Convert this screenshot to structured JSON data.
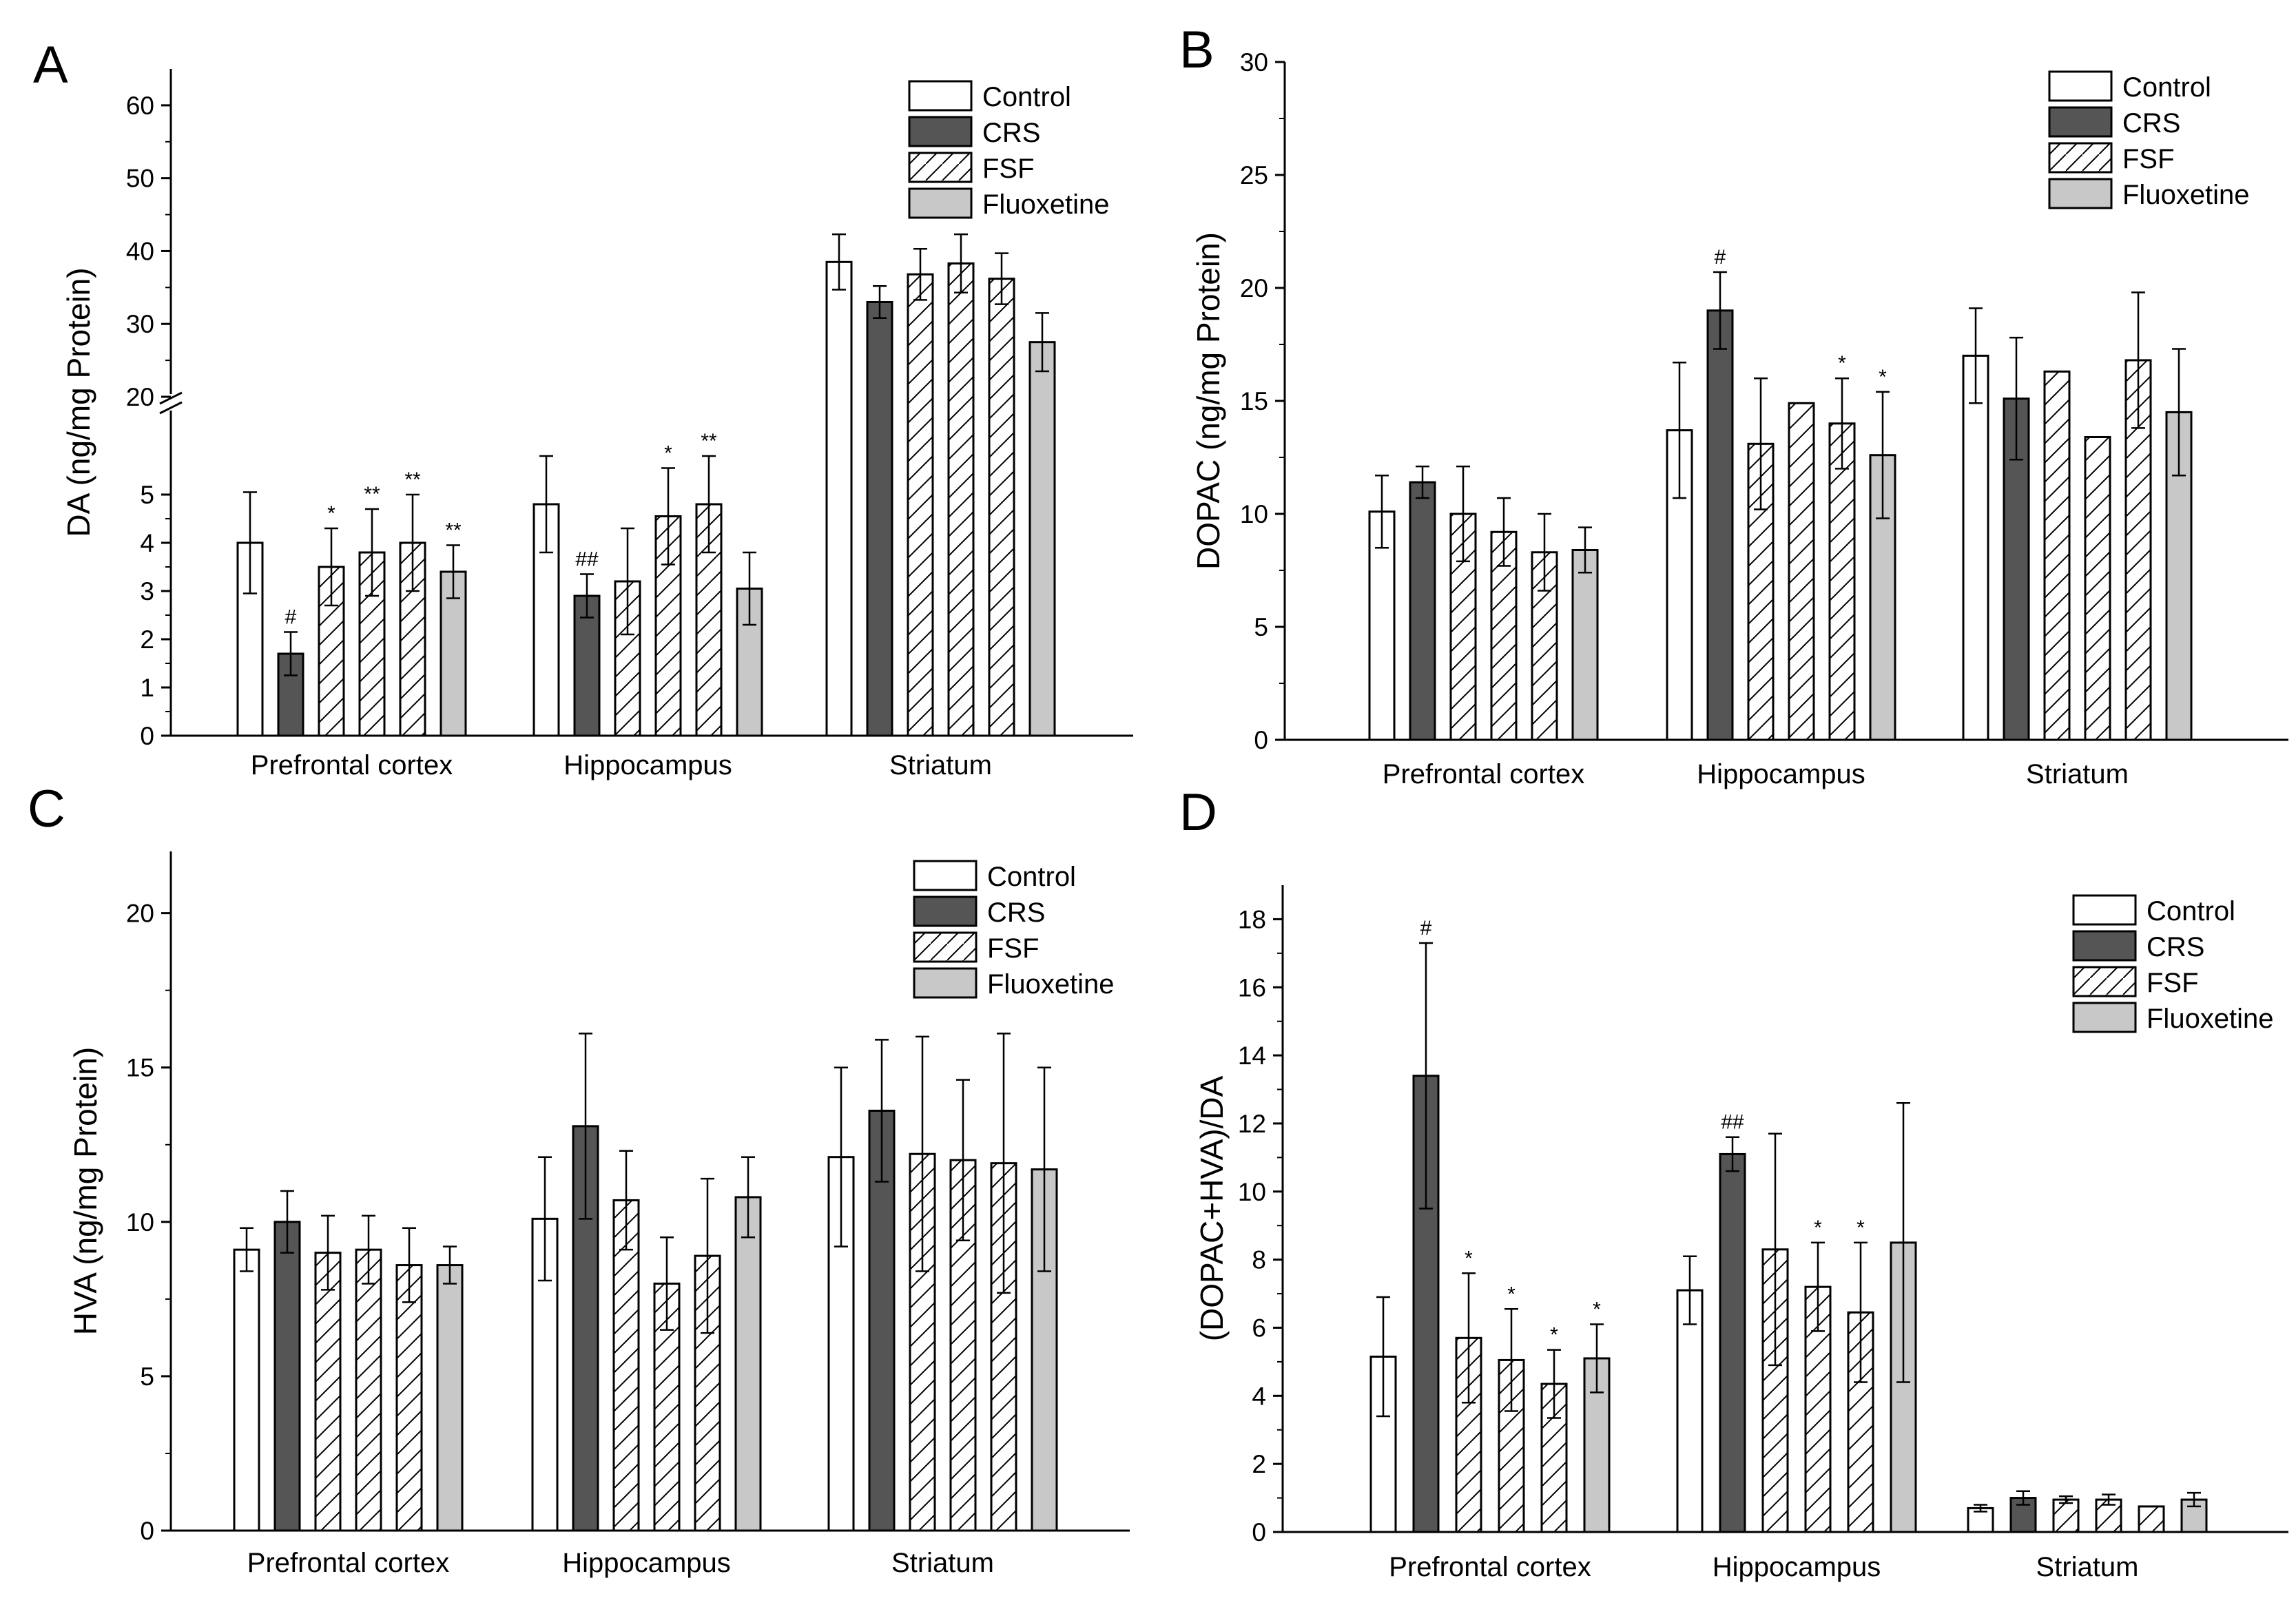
{
  "legend": [
    "Control",
    "CRS",
    "FSF",
    "Fluoxetine"
  ],
  "colors": {
    "Control": "#ffffff",
    "CRS": "#555555",
    "FSF": "#ffffff",
    "Fluoxetine": "#c8c8c8",
    "axis": "#000000"
  },
  "chart_data": [
    {
      "id": "A",
      "panel": "A",
      "type": "bar",
      "ylabel": "DA (ng/mg Protein)",
      "broken_axis": true,
      "ylim_lower": [
        0,
        6
      ],
      "ylim_upper": [
        20,
        65
      ],
      "yticks_lower": [
        "0",
        "1",
        "2",
        "3",
        "4",
        "5"
      ],
      "yticks_upper": [
        "20",
        "30",
        "40",
        "50",
        "60"
      ],
      "categories": [
        "Prefrontal cortex",
        "Hippocampus",
        "Striatum"
      ],
      "series": [
        {
          "name": "Control",
          "values": [
            4.0,
            4.8,
            38.5
          ],
          "errors": [
            1.05,
            1.0,
            3.8
          ]
        },
        {
          "name": "CRS",
          "values": [
            1.7,
            2.9,
            33.0
          ],
          "errors": [
            0.45,
            0.45,
            2.2
          ]
        },
        {
          "name": "FSF",
          "values": [
            3.5,
            3.2,
            36.8
          ],
          "errors": [
            0.8,
            1.1,
            3.5
          ]
        },
        {
          "name": "FSF",
          "values": [
            3.8,
            4.55,
            38.3
          ],
          "errors": [
            0.9,
            1.0,
            4.0
          ]
        },
        {
          "name": "FSF",
          "values": [
            4.0,
            4.8,
            36.2
          ],
          "errors": [
            1.0,
            1.0,
            3.5
          ]
        },
        {
          "name": "Fluoxetine",
          "values": [
            3.4,
            3.05,
            27.5
          ],
          "errors": [
            0.55,
            0.75,
            4.0
          ]
        }
      ],
      "significance": [
        [
          "",
          "#",
          "*",
          "**",
          "**",
          "**"
        ],
        [
          "",
          "##",
          "",
          "*",
          "**",
          ""
        ],
        [
          "",
          "",
          "",
          "",
          "",
          ""
        ]
      ]
    },
    {
      "id": "B",
      "panel": "B",
      "type": "bar",
      "ylabel": "DOPAC (ng/mg Protein)",
      "broken_axis": false,
      "ylim": [
        0,
        30
      ],
      "yticks": [
        "0",
        "5",
        "10",
        "15",
        "20",
        "25",
        "30"
      ],
      "categories": [
        "Prefrontal cortex",
        "Hippocampus",
        "Striatum"
      ],
      "series": [
        {
          "name": "Control",
          "values": [
            10.1,
            13.7,
            17.0
          ],
          "errors": [
            1.6,
            3.0,
            2.1
          ]
        },
        {
          "name": "CRS",
          "values": [
            11.4,
            19.0,
            15.1
          ],
          "errors": [
            0.7,
            1.7,
            2.7
          ]
        },
        {
          "name": "FSF",
          "values": [
            10.0,
            13.1,
            16.3
          ],
          "errors": [
            2.1,
            2.9,
            0.0
          ]
        },
        {
          "name": "FSF",
          "values": [
            9.2,
            14.9,
            13.4
          ],
          "errors": [
            1.5,
            0.0,
            0.0
          ]
        },
        {
          "name": "FSF",
          "values": [
            8.3,
            14.0,
            16.8
          ],
          "errors": [
            1.7,
            2.0,
            3.0
          ]
        },
        {
          "name": "Fluoxetine",
          "values": [
            8.4,
            12.6,
            14.5
          ],
          "errors": [
            1.0,
            2.8,
            2.8
          ]
        }
      ],
      "significance": [
        [
          "",
          "",
          "",
          "",
          "",
          ""
        ],
        [
          "",
          "#",
          "",
          "",
          "*",
          "*"
        ],
        [
          "",
          "",
          "",
          "",
          "",
          ""
        ]
      ]
    },
    {
      "id": "C",
      "panel": "C",
      "type": "bar",
      "ylabel": "HVA (ng/mg Protein)",
      "broken_axis": false,
      "ylim": [
        0,
        22
      ],
      "yticks": [
        "0",
        "5",
        "10",
        "15",
        "20"
      ],
      "categories": [
        "Prefrontal cortex",
        "Hippocampus",
        "Striatum"
      ],
      "series": [
        {
          "name": "Control",
          "values": [
            9.1,
            10.1,
            12.1
          ],
          "errors": [
            0.7,
            2.0,
            2.9
          ]
        },
        {
          "name": "CRS",
          "values": [
            10.0,
            13.1,
            13.6
          ],
          "errors": [
            1.0,
            3.0,
            2.3
          ]
        },
        {
          "name": "FSF",
          "values": [
            9.0,
            10.7,
            12.2
          ],
          "errors": [
            1.2,
            1.6,
            3.8
          ]
        },
        {
          "name": "FSF",
          "values": [
            9.1,
            8.0,
            12.0
          ],
          "errors": [
            1.1,
            1.5,
            2.6
          ]
        },
        {
          "name": "FSF",
          "values": [
            8.6,
            8.9,
            11.9
          ],
          "errors": [
            1.2,
            2.5,
            4.2
          ]
        },
        {
          "name": "Fluoxetine",
          "values": [
            8.6,
            10.8,
            11.7
          ],
          "errors": [
            0.6,
            1.3,
            3.3
          ]
        }
      ],
      "significance": [
        [
          "",
          "",
          "",
          "",
          "",
          ""
        ],
        [
          "",
          "",
          "",
          "",
          "",
          ""
        ],
        [
          "",
          "",
          "",
          "",
          "",
          ""
        ]
      ]
    },
    {
      "id": "D",
      "panel": "D",
      "type": "bar",
      "ylabel": "(DOPAC+HVA)/DA",
      "broken_axis": false,
      "ylim": [
        0,
        19
      ],
      "yticks": [
        "0",
        "2",
        "4",
        "6",
        "8",
        "10",
        "12",
        "14",
        "16",
        "18"
      ],
      "categories": [
        "Prefrontal cortex",
        "Hippocampus",
        "Striatum"
      ],
      "series": [
        {
          "name": "Control",
          "values": [
            5.15,
            7.1,
            0.7
          ],
          "errors": [
            1.75,
            1.0,
            0.1
          ]
        },
        {
          "name": "CRS",
          "values": [
            13.4,
            11.1,
            1.0
          ],
          "errors": [
            3.9,
            0.5,
            0.2
          ]
        },
        {
          "name": "FSF",
          "values": [
            5.7,
            8.3,
            0.95
          ],
          "errors": [
            1.9,
            3.4,
            0.1
          ]
        },
        {
          "name": "FSF",
          "values": [
            5.05,
            7.2,
            0.95
          ],
          "errors": [
            1.5,
            1.3,
            0.15
          ]
        },
        {
          "name": "FSF",
          "values": [
            4.35,
            6.45,
            0.75
          ],
          "errors": [
            1.0,
            2.05,
            0.0
          ]
        },
        {
          "name": "Fluoxetine",
          "values": [
            5.1,
            8.5,
            0.95
          ],
          "errors": [
            1.0,
            4.1,
            0.2
          ]
        }
      ],
      "significance": [
        [
          "",
          "#",
          "*",
          "*",
          "*",
          "*"
        ],
        [
          "",
          "##",
          "",
          "*",
          "*",
          ""
        ],
        [
          "",
          "",
          "",
          "",
          "",
          ""
        ]
      ]
    }
  ]
}
